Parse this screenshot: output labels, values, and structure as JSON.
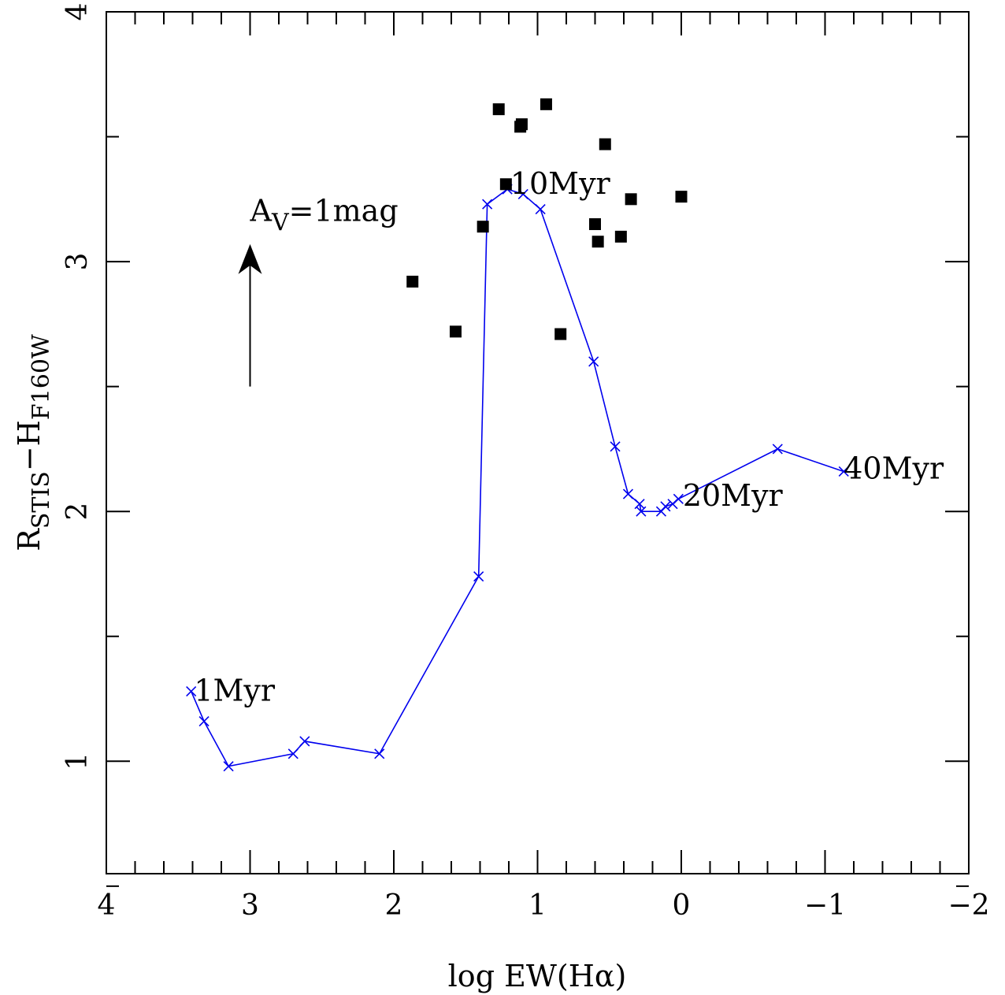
{
  "chart_data": {
    "type": "scatter",
    "title": "",
    "xlabel": "log EW(Hα)",
    "ylabel": {
      "main1": "R",
      "sub1": "STIS",
      "sep": "−H",
      "sub2": "F160W"
    },
    "xlim": [
      4,
      -2
    ],
    "ylim": [
      0.55,
      4
    ],
    "x_reversed": true,
    "grid": false,
    "x_ticks": [
      {
        "value": 4,
        "label": "4"
      },
      {
        "value": 3,
        "label": "3"
      },
      {
        "value": 2,
        "label": "2"
      },
      {
        "value": 1,
        "label": "1"
      },
      {
        "value": 0,
        "label": "0"
      },
      {
        "value": -1,
        "label": "−1"
      },
      {
        "value": -2,
        "label": "−2"
      }
    ],
    "y_ticks": [
      {
        "value": 1,
        "label": "1"
      },
      {
        "value": 2,
        "label": "2"
      },
      {
        "value": 3,
        "label": "3"
      },
      {
        "value": 4,
        "label": "4"
      }
    ],
    "observed": {
      "marker": "filled-square",
      "color": "#000000",
      "points": [
        {
          "x": 1.27,
          "y": 3.61
        },
        {
          "x": 0.94,
          "y": 3.63
        },
        {
          "x": 1.12,
          "y": 3.54
        },
        {
          "x": 1.11,
          "y": 3.55
        },
        {
          "x": 0.53,
          "y": 3.47
        },
        {
          "x": 1.22,
          "y": 3.31
        },
        {
          "x": 0.35,
          "y": 3.25
        },
        {
          "x": 0.0,
          "y": 3.26
        },
        {
          "x": 1.38,
          "y": 3.14
        },
        {
          "x": 0.6,
          "y": 3.15
        },
        {
          "x": 0.58,
          "y": 3.08
        },
        {
          "x": 0.42,
          "y": 3.1
        },
        {
          "x": 1.87,
          "y": 2.92
        },
        {
          "x": 1.57,
          "y": 2.72
        },
        {
          "x": 0.84,
          "y": 2.71
        }
      ]
    },
    "model": {
      "marker": "x",
      "color": "#0000ee",
      "points": [
        {
          "x": 3.41,
          "y": 1.28
        },
        {
          "x": 3.32,
          "y": 1.16
        },
        {
          "x": 3.15,
          "y": 0.98
        },
        {
          "x": 2.7,
          "y": 1.03
        },
        {
          "x": 2.62,
          "y": 1.08
        },
        {
          "x": 2.1,
          "y": 1.03
        },
        {
          "x": 1.41,
          "y": 1.74
        },
        {
          "x": 1.35,
          "y": 3.23
        },
        {
          "x": 1.21,
          "y": 3.29
        },
        {
          "x": 1.1,
          "y": 3.27
        },
        {
          "x": 0.98,
          "y": 3.21
        },
        {
          "x": 0.61,
          "y": 2.6
        },
        {
          "x": 0.46,
          "y": 2.26
        },
        {
          "x": 0.37,
          "y": 2.07
        },
        {
          "x": 0.29,
          "y": 2.03
        },
        {
          "x": 0.28,
          "y": 2.0
        },
        {
          "x": 0.14,
          "y": 2.0
        },
        {
          "x": 0.11,
          "y": 2.02
        },
        {
          "x": 0.06,
          "y": 2.03
        },
        {
          "x": 0.02,
          "y": 2.05
        },
        {
          "x": -0.67,
          "y": 2.25
        },
        {
          "x": -1.13,
          "y": 2.16
        }
      ]
    },
    "annotations": [
      {
        "text": "1Myr",
        "x": 3.39,
        "y": 1.28
      },
      {
        "text": "10Myr",
        "x": 1.19,
        "y": 3.31
      },
      {
        "text": "20Myr",
        "x": -0.01,
        "y": 2.06
      },
      {
        "text": "40Myr",
        "x": -1.13,
        "y": 2.17
      }
    ],
    "reddening_vector": {
      "label_main": "A",
      "label_sub": "V",
      "label_rest": "=1mag",
      "x": 3.0,
      "y_start": 2.5,
      "y_end": 3.07,
      "label_x": 3.0,
      "label_y": 3.2
    }
  }
}
